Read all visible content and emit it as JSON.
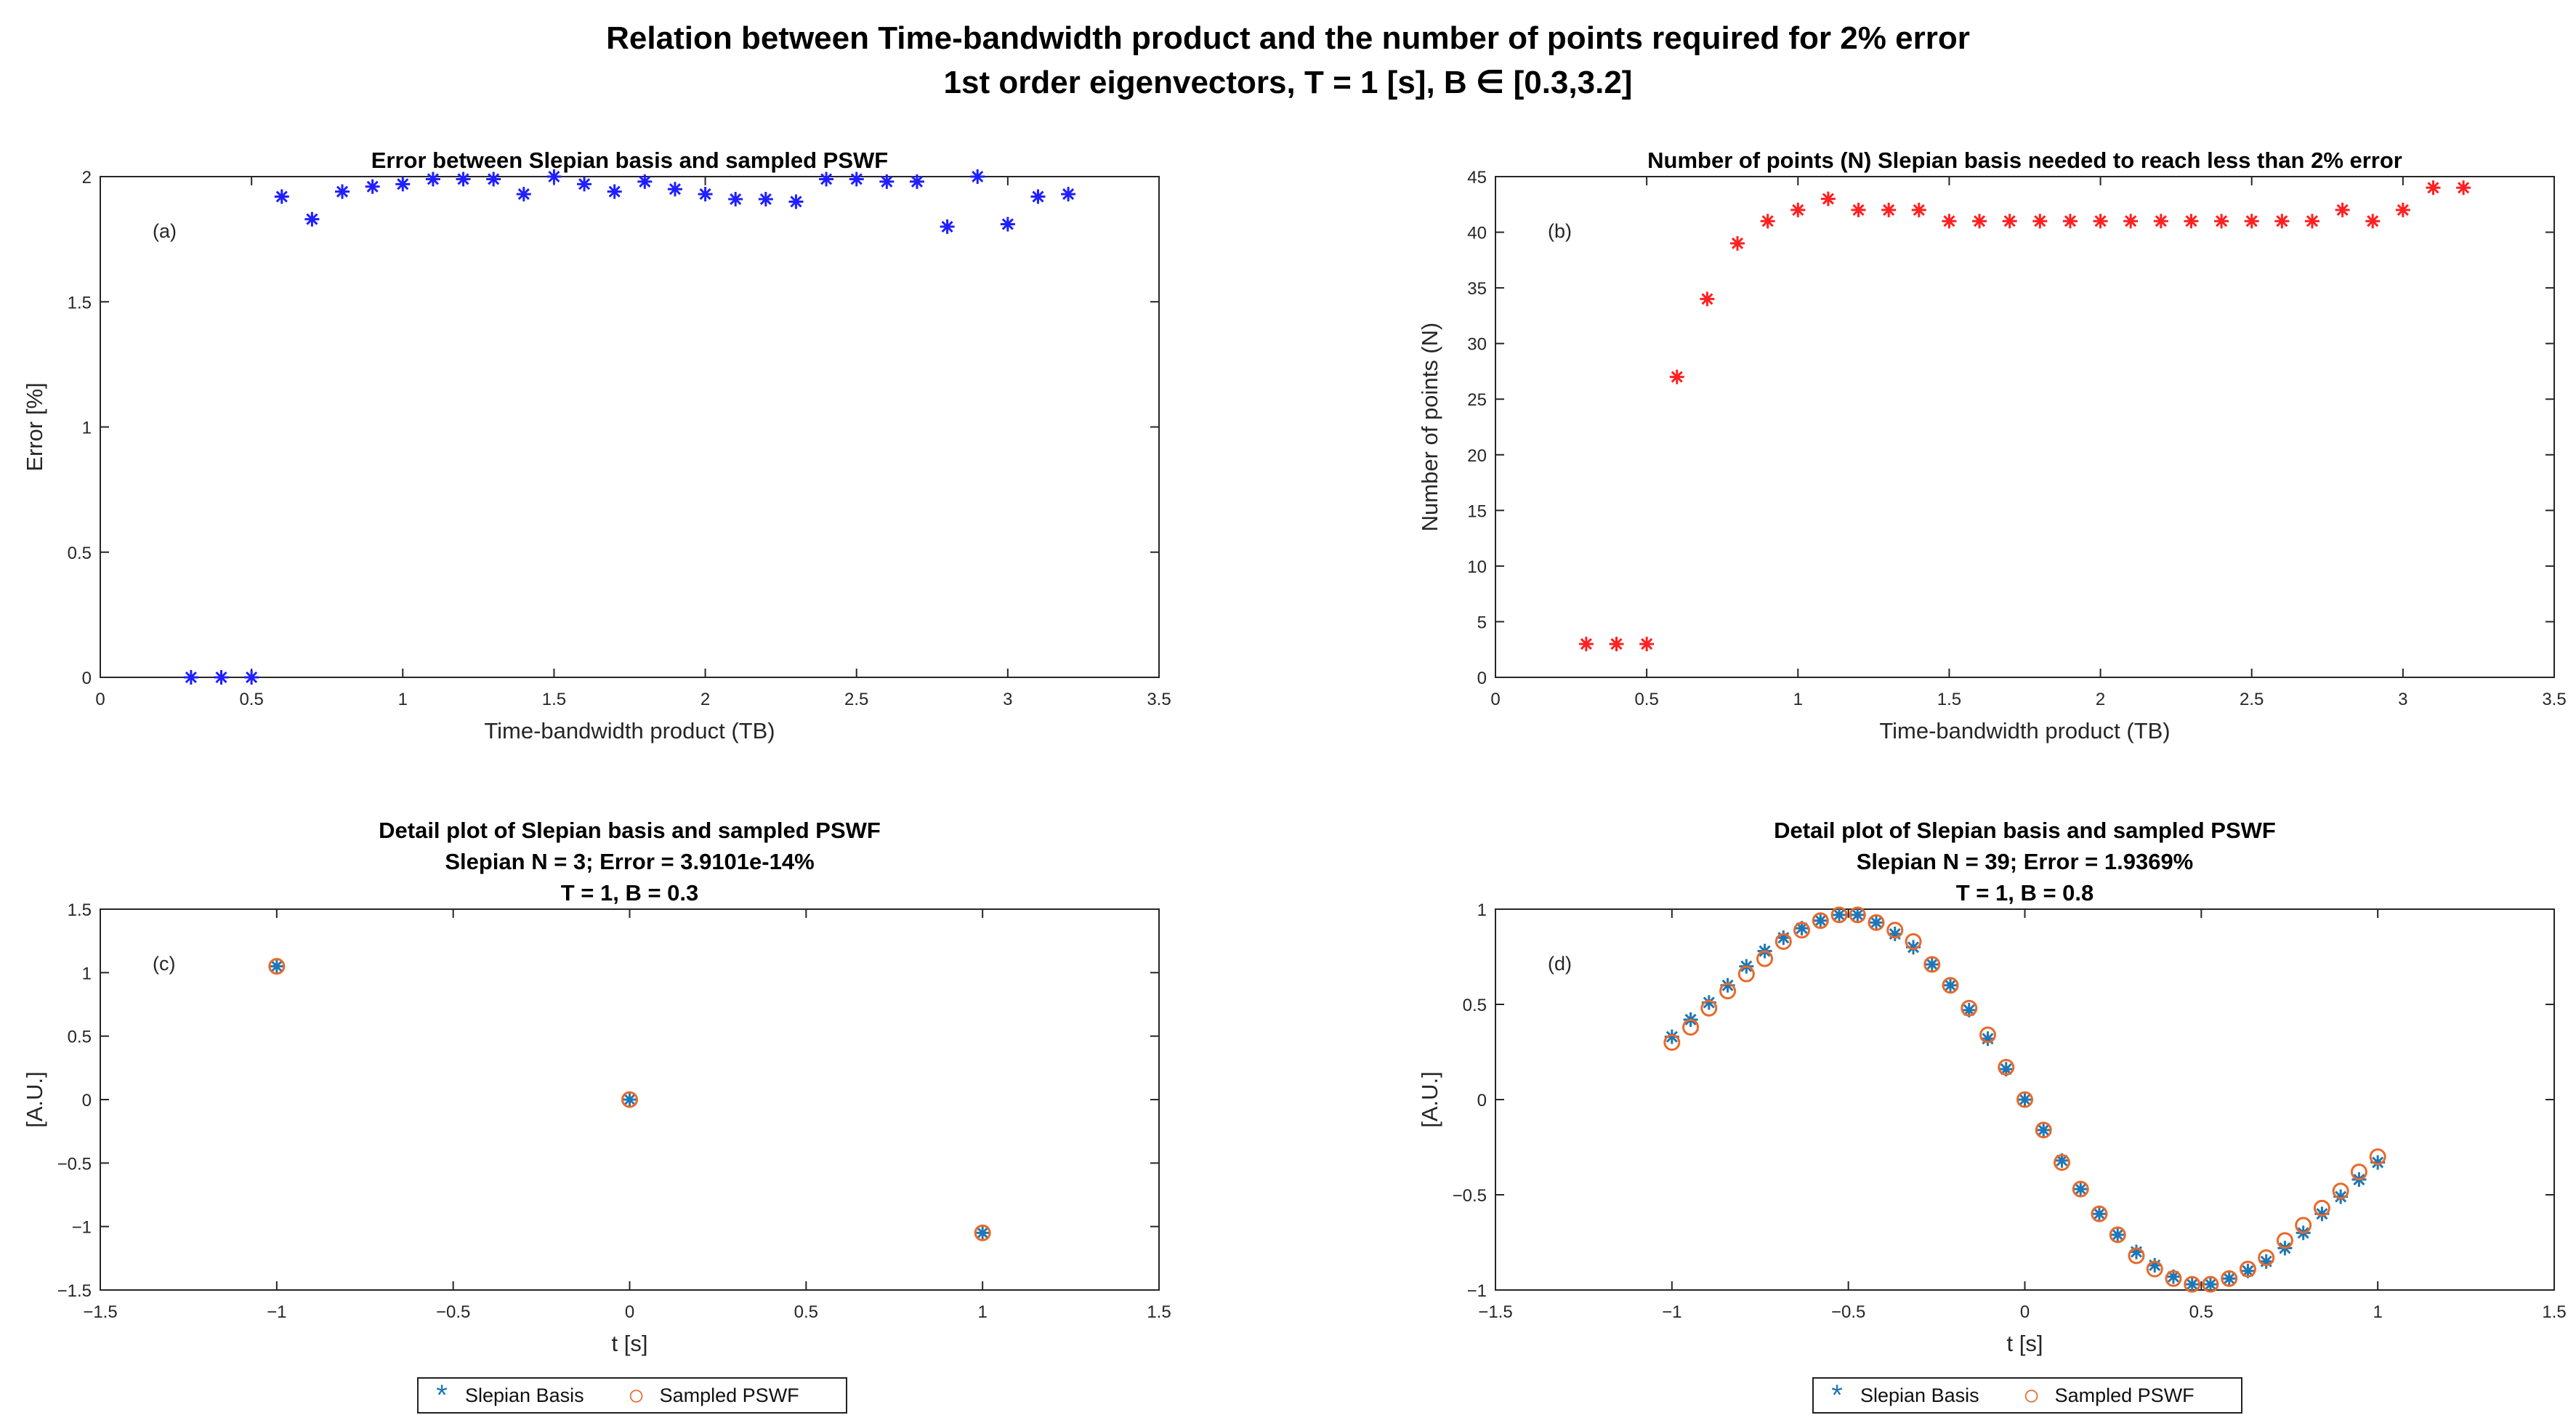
{
  "figure": {
    "title_line1": "Relation between Time-bandwidth product and the number of points required for 2% error",
    "title_line2": "1st order eigenvectors, T = 1 [s], B ∈ [0.3,3.2]"
  },
  "colors": {
    "blue_marker": "#1f1fff",
    "red_marker": "#ff2020",
    "slepian": "#1f77b4",
    "pswf": "#e8692a"
  },
  "legend": {
    "slepian_label": "Slepian Basis",
    "pswf_label": "Sampled PSWF"
  },
  "chart_data": [
    {
      "id": "a",
      "type": "scatter",
      "panel_label": "(a)",
      "title": [
        "Error between Slepian basis and sampled PSWF"
      ],
      "xlabel": "Time-bandwidth product (TB)",
      "ylabel": "Error [%]",
      "xlim": [
        0,
        3.5
      ],
      "ylim": [
        0,
        2
      ],
      "xticks": [
        0,
        0.5,
        1,
        1.5,
        2,
        2.5,
        3,
        3.5
      ],
      "xticklabels": [
        "0",
        "0.5",
        "1",
        "1.5",
        "2",
        "2.5",
        "3",
        "3.5"
      ],
      "yticks": [
        0,
        0.5,
        1,
        1.5,
        2
      ],
      "yticklabels": [
        "0",
        "0.5",
        "1",
        "1.5",
        "2"
      ],
      "series": [
        {
          "name": "Error",
          "marker": "star",
          "color": "#1f1fff",
          "x": [
            0.3,
            0.4,
            0.5,
            0.6,
            0.7,
            0.8,
            0.9,
            1.0,
            1.1,
            1.2,
            1.3,
            1.4,
            1.5,
            1.6,
            1.7,
            1.8,
            1.9,
            2.0,
            2.1,
            2.2,
            2.3,
            2.4,
            2.5,
            2.6,
            2.7,
            2.8,
            2.9,
            3.0,
            3.1,
            3.2
          ],
          "y": [
            0,
            0,
            0,
            1.92,
            1.83,
            1.94,
            1.96,
            1.97,
            1.99,
            1.99,
            1.99,
            1.93,
            2.0,
            1.97,
            1.94,
            1.98,
            1.95,
            1.93,
            1.91,
            1.91,
            1.9,
            1.99,
            1.99,
            1.98,
            1.98,
            1.8,
            2.0,
            1.81,
            1.92,
            1.93
          ]
        }
      ]
    },
    {
      "id": "b",
      "type": "scatter",
      "panel_label": "(b)",
      "title": [
        "Number of points (N) Slepian basis needed to reach less than 2% error"
      ],
      "xlabel": "Time-bandwidth product (TB)",
      "ylabel": "Number of points (N)",
      "xlim": [
        0,
        3.5
      ],
      "ylim": [
        0,
        45
      ],
      "xticks": [
        0,
        0.5,
        1,
        1.5,
        2,
        2.5,
        3,
        3.5
      ],
      "xticklabels": [
        "0",
        "0.5",
        "1",
        "1.5",
        "2",
        "2.5",
        "3",
        "3.5"
      ],
      "yticks": [
        0,
        5,
        10,
        15,
        20,
        25,
        30,
        35,
        40,
        45
      ],
      "yticklabels": [
        "0",
        "5",
        "10",
        "15",
        "20",
        "25",
        "30",
        "35",
        "40",
        "45"
      ],
      "series": [
        {
          "name": "N",
          "marker": "star",
          "color": "#ff2020",
          "x": [
            0.3,
            0.4,
            0.5,
            0.6,
            0.7,
            0.8,
            0.9,
            1.0,
            1.1,
            1.2,
            1.3,
            1.4,
            1.5,
            1.6,
            1.7,
            1.8,
            1.9,
            2.0,
            2.1,
            2.2,
            2.3,
            2.4,
            2.5,
            2.6,
            2.7,
            2.8,
            2.9,
            3.0,
            3.1,
            3.2
          ],
          "y": [
            3,
            3,
            3,
            27,
            34,
            39,
            41,
            42,
            43,
            42,
            42,
            42,
            41,
            41,
            41,
            41,
            41,
            41,
            41,
            41,
            41,
            41,
            41,
            41,
            41,
            42,
            41,
            42,
            44,
            44
          ]
        }
      ]
    },
    {
      "id": "c",
      "type": "scatter",
      "panel_label": "(c)",
      "title": [
        "Detail plot of Slepian basis and sampled PSWF",
        "Slepian N = 3; Error = 3.9101e-14%",
        "T = 1, B = 0.3"
      ],
      "xlabel": "t [s]",
      "ylabel": "[A.U.]",
      "xlim": [
        -1.5,
        1.5
      ],
      "ylim": [
        -1.5,
        1.5
      ],
      "xticks": [
        -1.5,
        -1,
        -0.5,
        0,
        0.5,
        1,
        1.5
      ],
      "xticklabels": [
        "−1.5",
        "−1",
        "−0.5",
        "0",
        "0.5",
        "1",
        "1.5"
      ],
      "yticks": [
        -1.5,
        -1,
        -0.5,
        0,
        0.5,
        1,
        1.5
      ],
      "yticklabels": [
        "−1.5",
        "−1",
        "−0.5",
        "0",
        "0.5",
        "1",
        "1.5"
      ],
      "series": [
        {
          "name": "Slepian Basis",
          "marker": "star",
          "color": "#1f77b4",
          "x": [
            -1,
            0,
            1
          ],
          "y": [
            1.05,
            0,
            -1.05
          ]
        },
        {
          "name": "Sampled PSWF",
          "marker": "circle",
          "color": "#e8692a",
          "x": [
            -1,
            0,
            1
          ],
          "y": [
            1.05,
            0,
            -1.05
          ]
        }
      ]
    },
    {
      "id": "d",
      "type": "scatter",
      "panel_label": "(d)",
      "title": [
        "Detail plot of Slepian basis and sampled PSWF",
        "Slepian N = 39; Error = 1.9369%",
        "T = 1, B = 0.8"
      ],
      "xlabel": "t [s]",
      "ylabel": "[A.U.]",
      "xlim": [
        -1.5,
        1.5
      ],
      "ylim": [
        -1,
        1
      ],
      "xticks": [
        -1.5,
        -1,
        -0.5,
        0,
        0.5,
        1,
        1.5
      ],
      "xticklabels": [
        "−1.5",
        "−1",
        "−0.5",
        "0",
        "0.5",
        "1",
        "1.5"
      ],
      "yticks": [
        -1,
        -0.5,
        0,
        0.5,
        1
      ],
      "yticklabels": [
        "−1",
        "−0.5",
        "0",
        "0.5",
        "1"
      ],
      "series": [
        {
          "name": "Slepian Basis",
          "marker": "star",
          "color": "#1f77b4",
          "x": [
            -1.0,
            -0.947,
            -0.895,
            -0.842,
            -0.789,
            -0.737,
            -0.684,
            -0.632,
            -0.579,
            -0.526,
            -0.474,
            -0.421,
            -0.368,
            -0.316,
            -0.263,
            -0.211,
            -0.158,
            -0.105,
            -0.053,
            0.0,
            0.053,
            0.105,
            0.158,
            0.211,
            0.263,
            0.316,
            0.368,
            0.421,
            0.474,
            0.526,
            0.579,
            0.632,
            0.684,
            0.737,
            0.789,
            0.842,
            0.895,
            0.947,
            1.0
          ],
          "y": [
            0.33,
            0.42,
            0.51,
            0.6,
            0.7,
            0.78,
            0.85,
            0.9,
            0.94,
            0.97,
            0.97,
            0.93,
            0.87,
            0.8,
            0.71,
            0.6,
            0.47,
            0.32,
            0.16,
            0.0,
            -0.16,
            -0.32,
            -0.47,
            -0.6,
            -0.71,
            -0.8,
            -0.87,
            -0.93,
            -0.97,
            -0.97,
            -0.94,
            -0.9,
            -0.85,
            -0.78,
            -0.7,
            -0.6,
            -0.51,
            -0.42,
            -0.33
          ]
        },
        {
          "name": "Sampled PSWF",
          "marker": "circle",
          "color": "#e8692a",
          "x": [
            -1.0,
            -0.947,
            -0.895,
            -0.842,
            -0.789,
            -0.737,
            -0.684,
            -0.632,
            -0.579,
            -0.526,
            -0.474,
            -0.421,
            -0.368,
            -0.316,
            -0.263,
            -0.211,
            -0.158,
            -0.105,
            -0.053,
            0.0,
            0.053,
            0.105,
            0.158,
            0.211,
            0.263,
            0.316,
            0.368,
            0.421,
            0.474,
            0.526,
            0.579,
            0.632,
            0.684,
            0.737,
            0.789,
            0.842,
            0.895,
            0.947,
            1.0
          ],
          "y": [
            0.3,
            0.38,
            0.48,
            0.57,
            0.66,
            0.74,
            0.83,
            0.89,
            0.94,
            0.97,
            0.97,
            0.93,
            0.89,
            0.83,
            0.71,
            0.6,
            0.48,
            0.34,
            0.17,
            0.0,
            -0.16,
            -0.33,
            -0.47,
            -0.6,
            -0.71,
            -0.82,
            -0.89,
            -0.94,
            -0.97,
            -0.97,
            -0.94,
            -0.89,
            -0.83,
            -0.74,
            -0.66,
            -0.57,
            -0.48,
            -0.38,
            -0.3
          ]
        }
      ]
    }
  ]
}
